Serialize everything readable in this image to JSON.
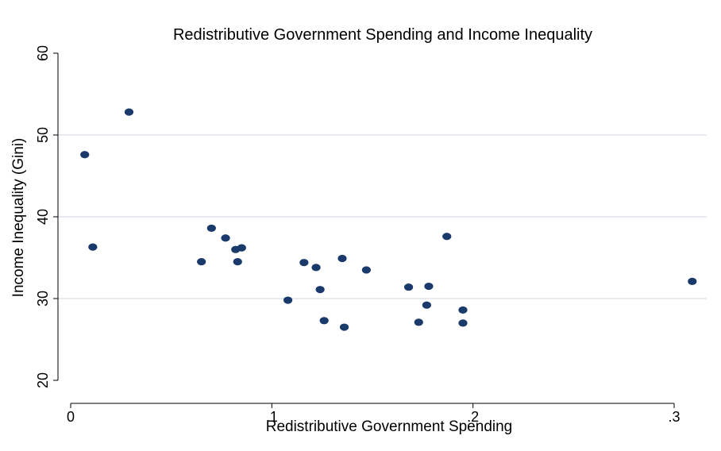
{
  "chart_data": {
    "type": "scatter",
    "title": "Redistributive Government Spending and Income Inequality",
    "xlabel": "Redistributive Government Spending",
    "ylabel": "Income Inequality (Gini)",
    "xlim": [
      0,
      0.31
    ],
    "ylim": [
      20,
      60
    ],
    "x_ticks": [
      0,
      0.1,
      0.2,
      0.3
    ],
    "x_tick_labels": [
      "0",
      ".1",
      ".2",
      ".3"
    ],
    "y_ticks": [
      20,
      30,
      40,
      50,
      60
    ],
    "y_tick_labels": [
      "20",
      "30",
      "40",
      "50",
      "60"
    ],
    "grid": "horizontal",
    "colors": {
      "marker": "#1a3a6b",
      "grid": "#dfe3ec",
      "axis": "#000000"
    },
    "points": [
      {
        "x": 0.007,
        "y": 47.6
      },
      {
        "x": 0.011,
        "y": 36.3
      },
      {
        "x": 0.029,
        "y": 52.8
      },
      {
        "x": 0.065,
        "y": 34.5
      },
      {
        "x": 0.07,
        "y": 38.6
      },
      {
        "x": 0.077,
        "y": 37.4
      },
      {
        "x": 0.082,
        "y": 36.0
      },
      {
        "x": 0.083,
        "y": 34.5
      },
      {
        "x": 0.085,
        "y": 36.2
      },
      {
        "x": 0.108,
        "y": 29.8
      },
      {
        "x": 0.116,
        "y": 34.4
      },
      {
        "x": 0.122,
        "y": 33.8
      },
      {
        "x": 0.124,
        "y": 31.1
      },
      {
        "x": 0.126,
        "y": 27.3
      },
      {
        "x": 0.135,
        "y": 34.9
      },
      {
        "x": 0.136,
        "y": 26.5
      },
      {
        "x": 0.147,
        "y": 33.5
      },
      {
        "x": 0.168,
        "y": 31.4
      },
      {
        "x": 0.173,
        "y": 27.1
      },
      {
        "x": 0.177,
        "y": 29.2
      },
      {
        "x": 0.178,
        "y": 31.5
      },
      {
        "x": 0.187,
        "y": 37.6
      },
      {
        "x": 0.195,
        "y": 28.6
      },
      {
        "x": 0.195,
        "y": 27.0
      },
      {
        "x": 0.309,
        "y": 32.1
      }
    ]
  }
}
